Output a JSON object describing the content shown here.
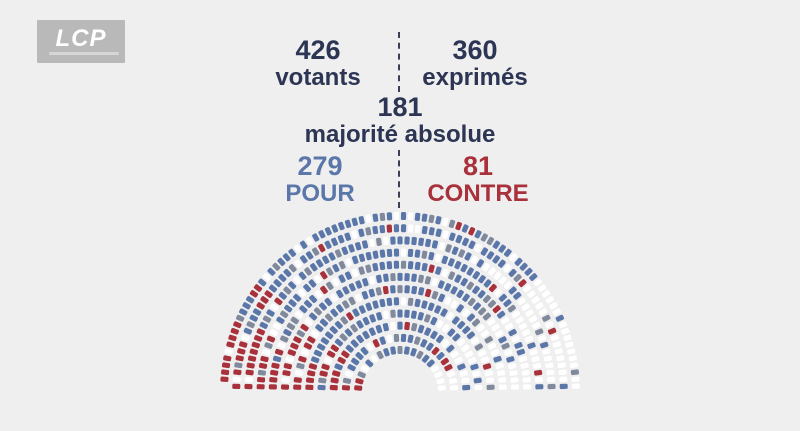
{
  "logo": {
    "text": "LCP"
  },
  "stats": {
    "votants": {
      "value": "426",
      "label": "votants"
    },
    "exprimes": {
      "value": "360",
      "label": "exprimés"
    },
    "majorite": {
      "value": "181",
      "label": "majorité absolue"
    },
    "pour": {
      "value": "279",
      "label": "POUR"
    },
    "contre": {
      "value": "81",
      "label": "CONTRE"
    }
  },
  "colors": {
    "text": "#2c3553",
    "pour": "#5b77aa",
    "contre": "#a8313b",
    "abstention": "#808a9c",
    "absent": "#ffffff",
    "background": "#efefef"
  },
  "chart_data": {
    "type": "hemicycle",
    "total_seats": 577,
    "rows": 12,
    "categories": [
      "POUR",
      "CONTRE",
      "abstention",
      "absent"
    ],
    "values": [
      279,
      81,
      66,
      151
    ]
  }
}
